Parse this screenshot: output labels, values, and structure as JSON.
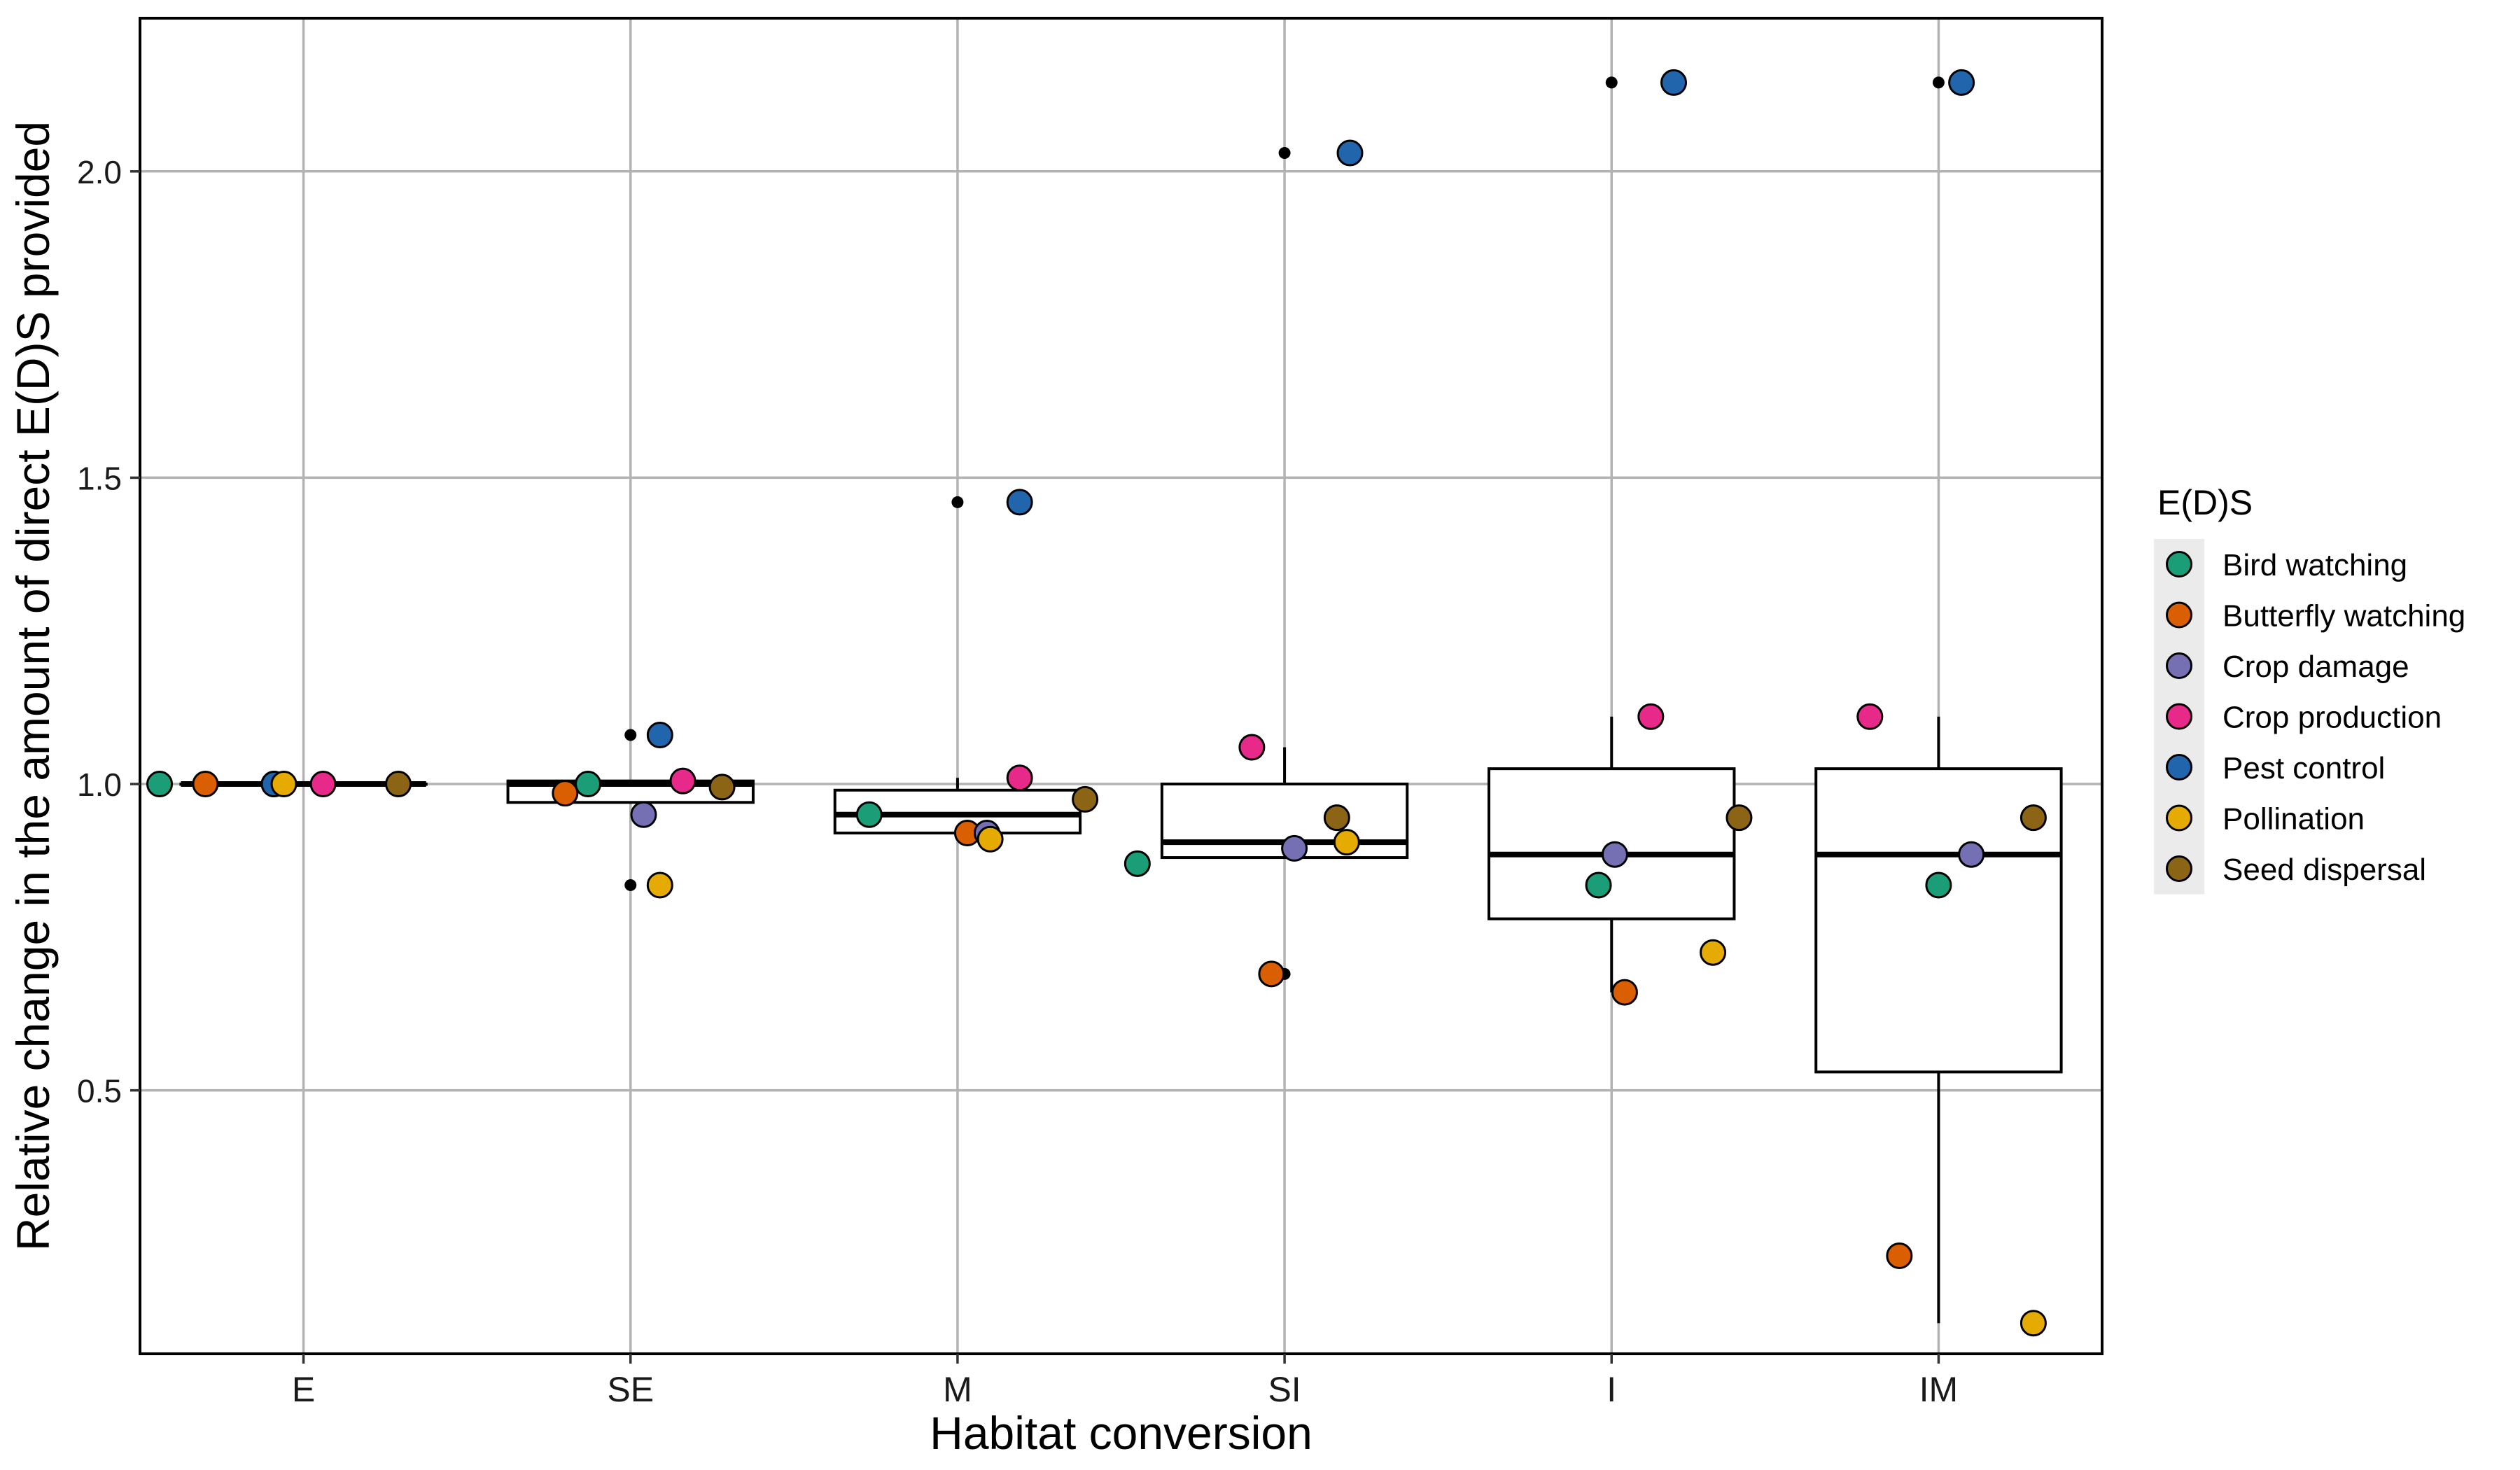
{
  "chart_data": {
    "type": "boxplot",
    "xlabel": "Habitat conversion",
    "ylabel": "Relative change in the amount of direct E(D)S provided",
    "categories": [
      "E",
      "SE",
      "M",
      "SI",
      "I",
      "IM"
    ],
    "ylim": [
      0.07,
      2.25
    ],
    "yticks": [
      0.5,
      1.0,
      1.5,
      2.0
    ],
    "ytick_labels": [
      "0.5",
      "1.0",
      "1.5",
      "2.0"
    ],
    "grid": true,
    "legend": {
      "title": "E(D)S",
      "position": "right"
    },
    "boxes": [
      {
        "category": "E",
        "q1": 1.0,
        "median": 1.0,
        "q3": 1.0,
        "whisker_low": 1.0,
        "whisker_high": 1.0,
        "outliers": []
      },
      {
        "category": "SE",
        "q1": 0.97,
        "median": 1.0,
        "q3": 1.005,
        "whisker_low": 0.97,
        "whisker_high": 1.005,
        "outliers": [
          1.08,
          0.835
        ]
      },
      {
        "category": "M",
        "q1": 0.92,
        "median": 0.95,
        "q3": 0.99,
        "whisker_low": 0.92,
        "whisker_high": 1.01,
        "outliers": [
          1.46
        ]
      },
      {
        "category": "SI",
        "q1": 0.88,
        "median": 0.905,
        "q3": 1.0,
        "whisker_low": 0.88,
        "whisker_high": 1.06,
        "outliers": [
          2.03,
          0.69
        ]
      },
      {
        "category": "I",
        "q1": 0.78,
        "median": 0.885,
        "q3": 1.025,
        "whisker_low": 0.66,
        "whisker_high": 1.11,
        "outliers": [
          2.145
        ]
      },
      {
        "category": "IM",
        "q1": 0.53,
        "median": 0.885,
        "q3": 1.025,
        "whisker_low": 0.12,
        "whisker_high": 1.11,
        "outliers": [
          2.145
        ]
      }
    ],
    "series": [
      {
        "name": "Bird watching",
        "color": "#1b9e77",
        "points": [
          {
            "x": "E",
            "y": 1.0
          },
          {
            "x": "SE",
            "y": 1.0
          },
          {
            "x": "M",
            "y": 0.95
          },
          {
            "x": "SI",
            "y": 0.87
          },
          {
            "x": "I",
            "y": 0.835
          },
          {
            "x": "IM",
            "y": 0.835
          }
        ]
      },
      {
        "name": "Butterfly watching",
        "color": "#d95f02",
        "points": [
          {
            "x": "E",
            "y": 1.0
          },
          {
            "x": "SE",
            "y": 0.985
          },
          {
            "x": "M",
            "y": 0.92
          },
          {
            "x": "SI",
            "y": 0.69
          },
          {
            "x": "I",
            "y": 0.66
          },
          {
            "x": "IM",
            "y": 0.23
          }
        ]
      },
      {
        "name": "Crop damage",
        "color": "#7570b3",
        "points": [
          {
            "x": "E",
            "y": 1.0
          },
          {
            "x": "SE",
            "y": 0.95
          },
          {
            "x": "M",
            "y": 0.92
          },
          {
            "x": "SI",
            "y": 0.895
          },
          {
            "x": "I",
            "y": 0.885
          },
          {
            "x": "IM",
            "y": 0.885
          }
        ]
      },
      {
        "name": "Crop production",
        "color": "#e7298a",
        "points": [
          {
            "x": "E",
            "y": 1.0
          },
          {
            "x": "SE",
            "y": 1.005
          },
          {
            "x": "M",
            "y": 1.01
          },
          {
            "x": "SI",
            "y": 1.06
          },
          {
            "x": "I",
            "y": 1.11
          },
          {
            "x": "IM",
            "y": 1.11
          }
        ]
      },
      {
        "name": "Pest control",
        "color": "#2166ac",
        "points": [
          {
            "x": "E",
            "y": 1.0
          },
          {
            "x": "SE",
            "y": 1.08
          },
          {
            "x": "M",
            "y": 1.46
          },
          {
            "x": "SI",
            "y": 2.03
          },
          {
            "x": "I",
            "y": 2.145
          },
          {
            "x": "IM",
            "y": 2.145
          }
        ]
      },
      {
        "name": "Pollination",
        "color": "#e6ab02",
        "points": [
          {
            "x": "E",
            "y": 1.0
          },
          {
            "x": "SE",
            "y": 0.835
          },
          {
            "x": "M",
            "y": 0.91
          },
          {
            "x": "SI",
            "y": 0.905
          },
          {
            "x": "I",
            "y": 0.725
          },
          {
            "x": "IM",
            "y": 0.12
          }
        ]
      },
      {
        "name": "Seed dispersal",
        "color": "#8c6416",
        "points": [
          {
            "x": "E",
            "y": 1.0
          },
          {
            "x": "SE",
            "y": 0.995
          },
          {
            "x": "M",
            "y": 0.975
          },
          {
            "x": "SI",
            "y": 0.945
          },
          {
            "x": "I",
            "y": 0.945
          },
          {
            "x": "IM",
            "y": 0.945
          }
        ]
      }
    ]
  }
}
